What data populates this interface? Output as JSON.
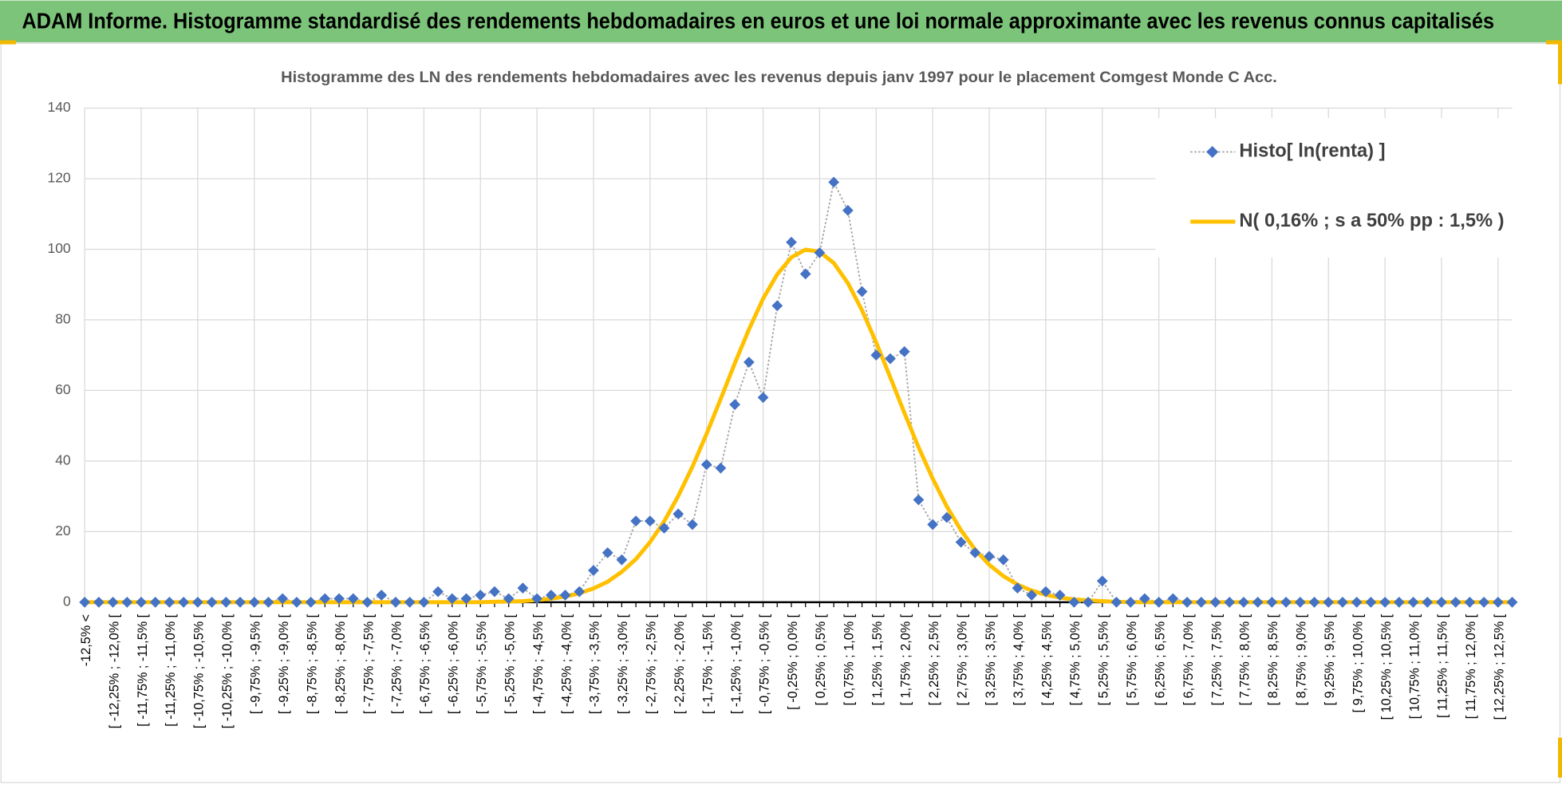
{
  "header": {
    "title": "ADAM Informe. Histogramme standardisé des rendements hebdomadaires en euros et une loi normale approximante avec les revenus connus capitalisés"
  },
  "chart_data": {
    "type": "line",
    "title": "Histogramme  des LN des rendements  hebdomadaires avec les revenus depuis janv 1997 pour le placement Comgest Monde C Acc.",
    "categories": [
      "-12,5% <",
      null,
      "[ -12,25% ; -12,0% [",
      null,
      "[ -11,75% ; -11,5% [",
      null,
      "[ -11,25% ; -11,0% [",
      null,
      "[ -10,75% ; -10,5% [",
      null,
      "[ -10,25% ; -10,0% [",
      null,
      "[ -9,75% ; -9,5% [",
      null,
      "[ -9,25% ; -9,0% [",
      null,
      "[ -8,75% ; -8,5% [",
      null,
      "[ -8,25% ; -8,0% [",
      null,
      "[ -7,75% ; -7,5% [",
      null,
      "[ -7,25% ; -7,0% [",
      null,
      "[ -6,75% ; -6,5% [",
      null,
      "[ -6,25% ; -6,0% [",
      null,
      "[ -5,75% ; -5,5% [",
      null,
      "[ -5,25% ; -5,0% [",
      null,
      "[ -4,75% ; -4,5% [",
      null,
      "[ -4,25% ; -4,0% [",
      null,
      "[ -3,75% ; -3,5% [",
      null,
      "[ -3,25% ; -3,0% [",
      null,
      "[ -2,75% ; -2,5% [",
      null,
      "[ -2,25% ; -2,0% [",
      null,
      "[ -1,75% ; -1,5% [",
      null,
      "[ -1,25% ; -1,0% [",
      null,
      "[ -0,75% ; -0,5% [",
      null,
      "[ -0,25% ; 0,0% [",
      null,
      "[ 0,25% ; 0,5% [",
      null,
      "[ 0,75% ; 1,0% [",
      null,
      "[ 1,25% ; 1,5% [",
      null,
      "[ 1,75% ; 2,0% [",
      null,
      "[ 2,25% ; 2,5% [",
      null,
      "[ 2,75% ; 3,0% [",
      null,
      "[ 3,25% ; 3,5% [",
      null,
      "[ 3,75% ; 4,0% [",
      null,
      "[ 4,25% ; 4,5% [",
      null,
      "[ 4,75% ; 5,0% [",
      null,
      "[ 5,25% ; 5,5% [",
      null,
      "[ 5,75% ; 6,0% [",
      null,
      "[ 6,25% ; 6,5% [",
      null,
      "[ 6,75% ; 7,0% [",
      null,
      "[ 7,25% ; 7,5% [",
      null,
      "[ 7,75% ; 8,0% [",
      null,
      "[ 8,25% ; 8,5% [",
      null,
      "[ 8,75% ; 9,0% [",
      null,
      "[ 9,25% ; 9,5% [",
      null,
      "[ 9,75% ; 10,0% [",
      null,
      "[ 10,25% ; 10,5% [",
      null,
      "[ 10,75% ; 11,0% [",
      null,
      "[ 11,25% ; 11,5% [",
      null,
      "[ 11,75% ; 12,0% [",
      null,
      "[ 12,25% ; 12,5% [",
      null
    ],
    "series": [
      {
        "name": "Histo[ ln(renta) ]",
        "color": "#4472c4",
        "values": [
          0,
          0,
          0,
          0,
          0,
          0,
          0,
          0,
          0,
          0,
          0,
          0,
          0,
          0,
          1,
          0,
          0,
          1,
          1,
          1,
          0,
          2,
          0,
          0,
          0,
          3,
          1,
          1,
          2,
          3,
          1,
          4,
          1,
          2,
          2,
          3,
          9,
          14,
          12,
          23,
          23,
          21,
          25,
          22,
          39,
          38,
          56,
          68,
          58,
          84,
          102,
          93,
          99,
          119,
          111,
          88,
          70,
          69,
          71,
          29,
          22,
          24,
          17,
          14,
          13,
          12,
          4,
          2,
          3,
          2,
          0,
          0,
          6,
          0,
          0,
          1,
          0,
          1,
          0,
          0,
          0,
          0,
          0,
          0,
          0,
          0,
          0,
          0,
          0,
          0,
          0,
          0,
          0,
          0,
          0,
          0,
          0,
          0,
          0,
          0,
          0,
          0
        ]
      },
      {
        "name": "N( 0,16% ; s a 50% pp : 1,5% )",
        "color": "#ffc000",
        "values": [
          0,
          0,
          0,
          0,
          0,
          0,
          0,
          0,
          0,
          0,
          0,
          0,
          0,
          0,
          0,
          0,
          0,
          0,
          0,
          0,
          0,
          0,
          0,
          0,
          0,
          0,
          0,
          0,
          0,
          0.1,
          0.2,
          0.3,
          0.6,
          1.0,
          1.6,
          2.5,
          3.9,
          5.8,
          8.6,
          12.2,
          17.0,
          22.9,
          30.1,
          38.4,
          47.7,
          57.6,
          67.7,
          77.3,
          86.0,
          92.9,
          97.7,
          99.9,
          99.3,
          96.1,
          90.4,
          82.7,
          73.6,
          63.7,
          53.6,
          43.9,
          35.0,
          27.1,
          20.4,
          14.9,
          10.6,
          7.4,
          5.0,
          3.3,
          2.1,
          1.3,
          0.8,
          0.5,
          0.3,
          0.1,
          0,
          0,
          0,
          0,
          0,
          0,
          0,
          0,
          0,
          0,
          0,
          0,
          0,
          0,
          0,
          0,
          0,
          0,
          0,
          0,
          0,
          0,
          0,
          0,
          0,
          0,
          0,
          0
        ]
      }
    ],
    "ylim": [
      0,
      140
    ],
    "yticks": [
      0,
      20,
      40,
      60,
      80,
      100,
      120,
      140
    ],
    "grid": true,
    "legend": "top-right"
  }
}
